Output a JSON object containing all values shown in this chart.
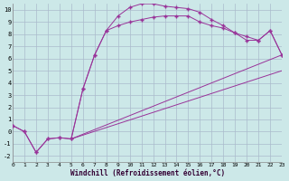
{
  "xlabel": "Windchill (Refroidissement éolien,°C)",
  "bg_color": "#cce8e8",
  "grid_color": "#aabbcc",
  "line_color": "#993399",
  "xmin": 0,
  "xmax": 23,
  "ymin": -2.5,
  "ymax": 10.5,
  "xticks": [
    0,
    1,
    2,
    3,
    4,
    5,
    6,
    7,
    8,
    9,
    10,
    11,
    12,
    13,
    14,
    15,
    16,
    17,
    18,
    19,
    20,
    21,
    22,
    23
  ],
  "yticks": [
    -2,
    -1,
    0,
    1,
    2,
    3,
    4,
    5,
    6,
    7,
    8,
    9,
    10
  ],
  "curve1_x": [
    0,
    1,
    2,
    3,
    4,
    5,
    6,
    7,
    8,
    9,
    10,
    11,
    12,
    13,
    14,
    15,
    16,
    17,
    18,
    19,
    20,
    21,
    22,
    23
  ],
  "curve1_y": [
    0.5,
    0.0,
    -1.7,
    -0.6,
    -0.5,
    -0.6,
    3.5,
    6.3,
    8.3,
    9.5,
    10.2,
    10.5,
    10.5,
    10.3,
    10.2,
    10.1,
    9.8,
    9.2,
    8.7,
    8.1,
    7.5,
    7.5,
    8.3,
    6.3
  ],
  "curve2_x": [
    0,
    1,
    2,
    3,
    4,
    5,
    6,
    7,
    8,
    9,
    10,
    11,
    12,
    13,
    14,
    15,
    16,
    17,
    18,
    19,
    20,
    21,
    22,
    23
  ],
  "curve2_y": [
    0.5,
    0.0,
    -1.7,
    -0.6,
    -0.5,
    -0.6,
    3.5,
    6.3,
    8.3,
    8.7,
    9.0,
    9.2,
    9.4,
    9.5,
    9.5,
    9.5,
    9.0,
    8.7,
    8.5,
    8.1,
    7.8,
    7.5,
    8.3,
    6.3
  ],
  "line3_x": [
    5,
    23
  ],
  "line3_y": [
    -0.6,
    6.3
  ],
  "line4_x": [
    5,
    23
  ],
  "line4_y": [
    -0.6,
    5.0
  ]
}
